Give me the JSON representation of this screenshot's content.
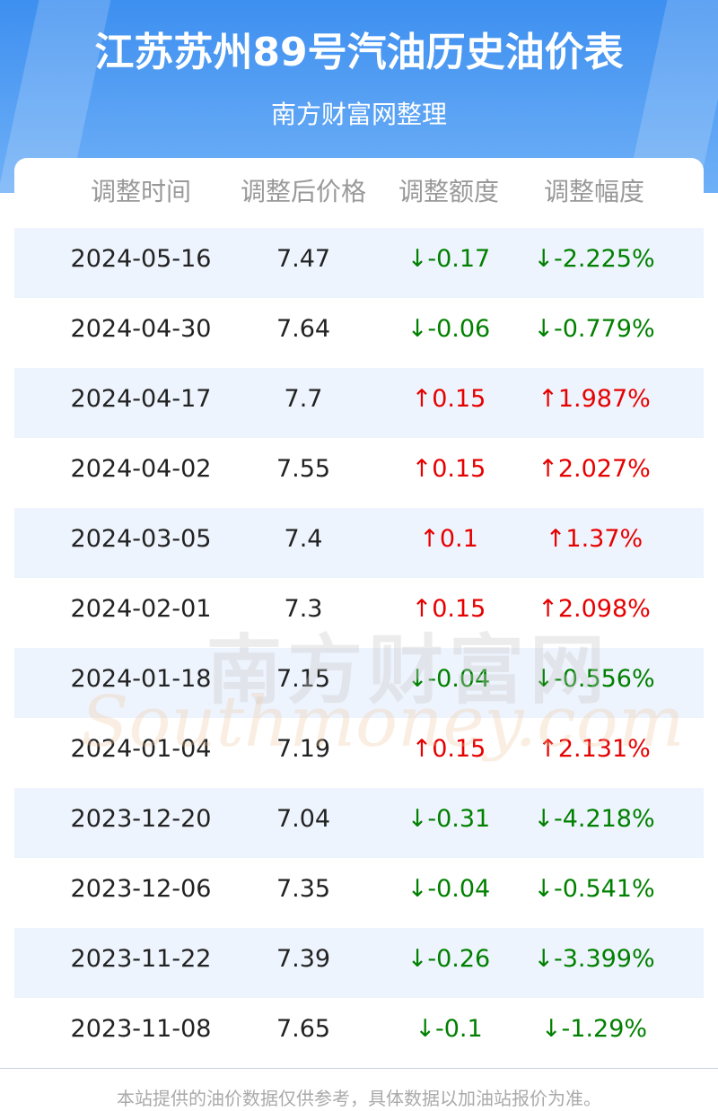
{
  "header": {
    "title": "江苏苏州89号汽油历史油价表",
    "subtitle": "南方财富网整理"
  },
  "table": {
    "columns": [
      "调整时间",
      "调整后价格",
      "调整额度",
      "调整幅度"
    ],
    "rows": [
      [
        "2024-05-16",
        "7.47",
        "↓-0.17",
        "↓-2.225%"
      ],
      [
        "2024-04-30",
        "7.64",
        "↓-0.06",
        "↓-0.779%"
      ],
      [
        "2024-04-17",
        "7.7",
        "↑0.15",
        "↑1.987%"
      ],
      [
        "2024-04-02",
        "7.55",
        "↑0.15",
        "↑2.027%"
      ],
      [
        "2024-03-05",
        "7.4",
        "↑0.1",
        "↑1.37%"
      ],
      [
        "2024-02-01",
        "7.3",
        "↑0.15",
        "↑2.098%"
      ],
      [
        "2024-01-18",
        "7.15",
        "↓-0.04",
        "↓-0.556%"
      ],
      [
        "2024-01-04",
        "7.19",
        "↑0.15",
        "↑2.131%"
      ],
      [
        "2023-12-20",
        "7.04",
        "↓-0.31",
        "↓-4.218%"
      ],
      [
        "2023-12-06",
        "7.35",
        "↓-0.04",
        "↓-0.541%"
      ],
      [
        "2023-11-22",
        "7.39",
        "↓-0.26",
        "↓-3.399%"
      ],
      [
        "2023-11-08",
        "7.65",
        "↓-0.1",
        "↓-1.29%"
      ]
    ]
  },
  "watermark": {
    "name": "南方财富网",
    "domain": "Southmoney.com"
  },
  "footer": "本站提供的油价数据仅供参考，具体数据以加油站报价为准。"
}
